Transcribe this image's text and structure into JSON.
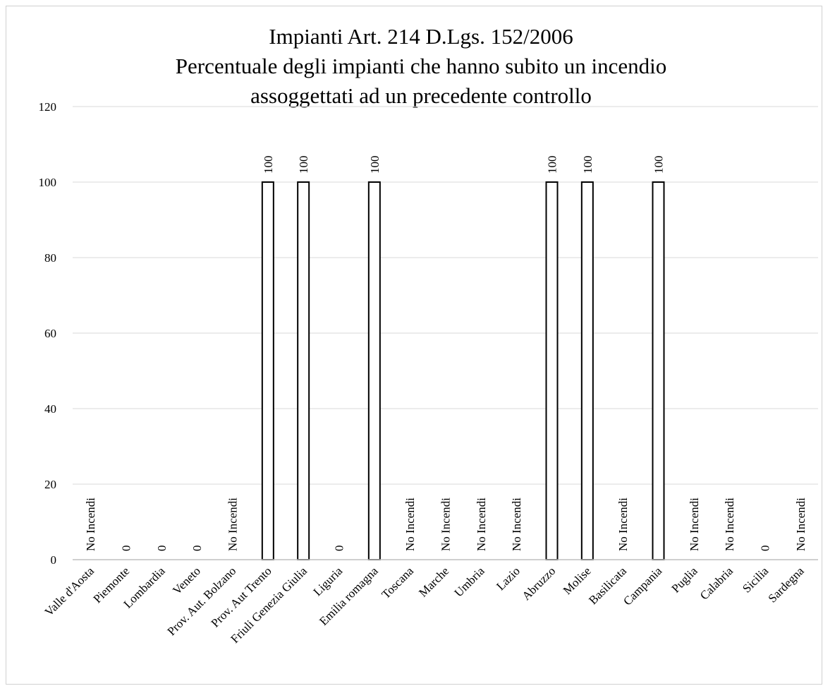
{
  "chart_data": {
    "type": "bar",
    "title_lines": [
      "Impianti Art. 214 D.Lgs. 152/2006",
      "Percentuale degli impianti che hanno subito un incendio",
      "assoggettati ad un precedente controllo"
    ],
    "categories": [
      "Valle d'Aosta",
      "Piemonte",
      "Lombardia",
      "Veneto",
      "Prov. Aut. Bolzano",
      "Prov. Aut Trento",
      "Friuli Genezia Giulia",
      "Liguria",
      "Emilia romagna",
      "Toscana",
      "Marche",
      "Umbria",
      "Lazio",
      "Abruzzo",
      "Molise",
      "Basilicata",
      "Campania",
      "Puglia",
      "Calabria",
      "Sicilia",
      "Sardegna"
    ],
    "values": [
      0,
      0,
      0,
      0,
      0,
      100,
      100,
      0,
      100,
      0,
      0,
      0,
      0,
      100,
      100,
      0,
      100,
      0,
      0,
      0,
      0
    ],
    "data_labels": [
      "No Incendi",
      "0",
      "0",
      "0",
      "No Incendi",
      "100",
      "100",
      "0",
      "100",
      "No Incendi",
      "No Incendi",
      "No Incendi",
      "No Incendi",
      "100",
      "100",
      "No Incendi",
      "100",
      "No Incendi",
      "No Incendi",
      "0",
      "No Incendi"
    ],
    "ylim": [
      0,
      120
    ],
    "yticks": [
      "0",
      "20",
      "40",
      "60",
      "80",
      "100",
      "120"
    ],
    "xlabel": "",
    "ylabel": "",
    "gridlines": true,
    "legend": false,
    "bar_fill": "#ffffff",
    "bar_stroke": "#000000",
    "grid_color": "#d9d9d9"
  }
}
